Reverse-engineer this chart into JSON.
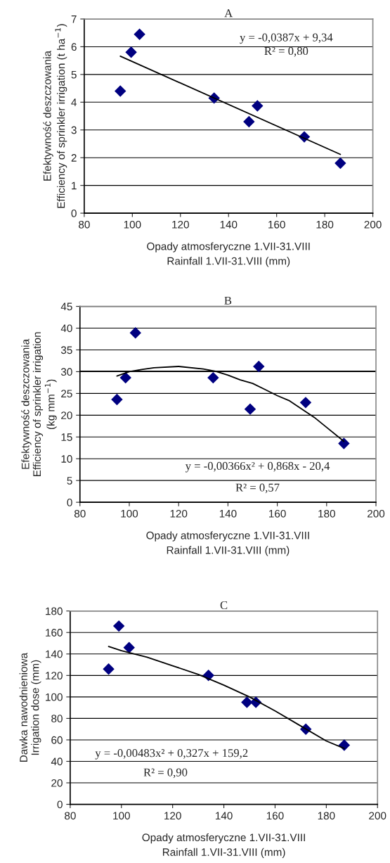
{
  "chart_data": [
    {
      "type": "scatter",
      "title": "A",
      "xlabel": "Opady atmosferyczne 1.VII-31.VIII\nRainfall 1.VII-31.VIII (mm)",
      "ylabel": "Efektywność deszczowania\nEfficiency of sprinkler irrigation (t ha$^{−1}$)",
      "xlim": [
        80,
        200
      ],
      "xticks": [
        80,
        100,
        120,
        140,
        160,
        180,
        200
      ],
      "ylim": [
        0,
        7
      ],
      "yticks": [
        0,
        1,
        2,
        3,
        4,
        5,
        6,
        7
      ],
      "grid": "y",
      "legend": false,
      "marker": "diamond",
      "annotations": [
        "y = -0,0387x + 9,34",
        "R² = 0,80"
      ],
      "series": [
        {
          "color": "#000080",
          "x": [
            95,
            99.5,
            103,
            134,
            148.5,
            152,
            171.5,
            186.5
          ],
          "values": [
            4.4,
            5.8,
            6.45,
            4.15,
            3.3,
            3.87,
            2.75,
            1.8
          ]
        },
        {
          "type": "line",
          "color": "#000000",
          "marker": "none",
          "line_style": "solid",
          "x": [
            95,
            186.5
          ],
          "values": [
            5.66,
            2.12
          ]
        }
      ]
    },
    {
      "type": "scatter",
      "title": "B",
      "xlabel": "Opady atmosferyczne 1.VII-31.VIII\nRainfall 1.VII-31.VIII (mm)",
      "ylabel": "Efektywność deszczowania\nEfficiency of sprinkler irrigation\n(kg mm$^{−1}$)",
      "xlim": [
        80,
        200
      ],
      "xticks": [
        80,
        100,
        120,
        140,
        160,
        180,
        200
      ],
      "ylim": [
        0,
        45
      ],
      "yticks": [
        0,
        5,
        10,
        15,
        20,
        25,
        30,
        35,
        40,
        45
      ],
      "grid": "y",
      "legend": false,
      "marker": "diamond",
      "annotations": [
        "y = -0,00366x² + 0,868x - 20,4",
        "R² = 0,57"
      ],
      "ref_lines": [
        {
          "axis": "y",
          "value": 30.1,
          "color": "#000000"
        }
      ],
      "series": [
        {
          "color": "#000080",
          "x": [
            95,
            98.5,
            102.5,
            134,
            149,
            152.5,
            171.5,
            187
          ],
          "values": [
            23.6,
            28.6,
            38.9,
            28.6,
            21.4,
            31.2,
            22.9,
            13.5
          ]
        },
        {
          "type": "line",
          "color": "#000000",
          "marker": "none",
          "line_style": "solid",
          "x": [
            95,
            100,
            105,
            110,
            120,
            130,
            135,
            140,
            145,
            150,
            155,
            160,
            165,
            170,
            175,
            180,
            187
          ],
          "values": [
            29,
            30,
            30.5,
            30.9,
            31.2,
            30.6,
            30.1,
            29.2,
            28.1,
            27.3,
            25.9,
            24.5,
            23.3,
            21.4,
            19.5,
            17.2,
            14
          ]
        }
      ]
    },
    {
      "type": "scatter",
      "title": "C",
      "xlabel": "Opady atmosferyczne 1.VII-31.VIII\nRainfall 1.VII-31.VIII (mm)",
      "ylabel": "Dawka nawodnieniowa\nIrrigation dose (mm)",
      "xlim": [
        80,
        200
      ],
      "xticks": [
        80,
        100,
        120,
        140,
        160,
        180,
        200
      ],
      "ylim": [
        0,
        180
      ],
      "yticks": [
        0,
        20,
        40,
        60,
        80,
        100,
        120,
        140,
        160,
        180
      ],
      "grid": "y",
      "legend": false,
      "marker": "diamond",
      "annotations": [
        "y = -0,00483x² + 0,327x + 159,2",
        "R² = 0,90"
      ],
      "series": [
        {
          "color": "#000080",
          "x": [
            95,
            99,
            103,
            134,
            149,
            152.5,
            172,
            187
          ],
          "values": [
            126,
            166,
            146,
            120,
            95,
            95,
            70,
            55
          ]
        },
        {
          "type": "line",
          "color": "#000000",
          "marker": "none",
          "line_style": "solid",
          "x": [
            95,
            100,
            110,
            120,
            130,
            140,
            150,
            160,
            170,
            180,
            187
          ],
          "values": [
            147,
            143,
            137,
            129,
            121,
            111,
            100,
            87,
            73,
            59,
            52
          ]
        }
      ]
    }
  ]
}
